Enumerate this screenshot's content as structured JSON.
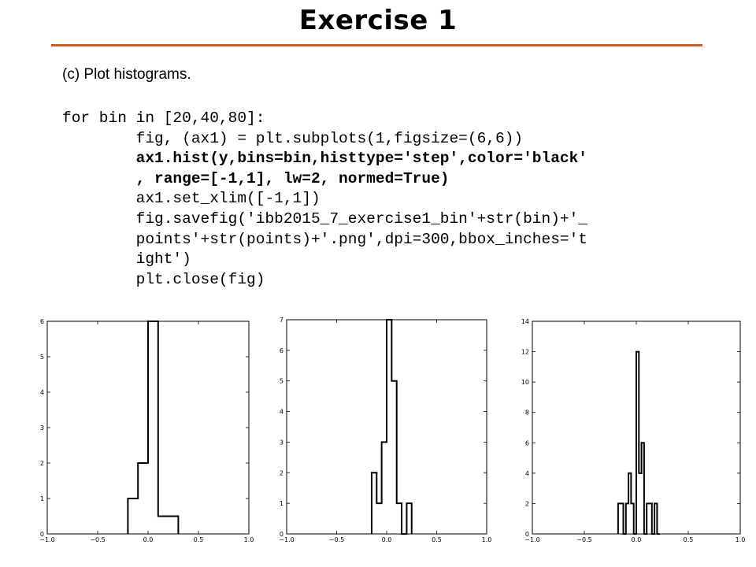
{
  "slide": {
    "title": "Exercise 1",
    "subtitle": "(c) Plot histograms.",
    "code_lines": [
      {
        "text": "for bin in [20,40,80]:",
        "indent": 0,
        "bold": false
      },
      {
        "text": "fig, (ax1) = plt.subplots(1,figsize=(6,6))",
        "indent": 1,
        "bold": false
      },
      {
        "text": "ax1.hist(y,bins=bin,histtype='step',color='black'",
        "indent": 1,
        "bold": true
      },
      {
        "text": ", range=[-1,1], lw=2, normed=True)",
        "indent": 1,
        "bold": true
      },
      {
        "text": "ax1.set_xlim([-1,1])",
        "indent": 1,
        "bold": false
      },
      {
        "text": "fig.savefig('ibb2015_7_exercise1_bin'+str(bin)+'_",
        "indent": 1,
        "bold": false
      },
      {
        "text": "points'+str(points)+'.png',dpi=300,bbox_inches='t",
        "indent": 1,
        "bold": false
      },
      {
        "text": "ight')",
        "indent": 1,
        "bold": false
      },
      {
        "text": "plt.close(fig)",
        "indent": 1,
        "bold": false
      }
    ]
  },
  "chart_data": [
    {
      "type": "histogram-step",
      "bins": 20,
      "range": [
        -1,
        1
      ],
      "xlim": [
        -1,
        1
      ],
      "ylim": [
        0,
        6
      ],
      "xticks": [
        "−1.0",
        "−0.5",
        "0.0",
        "0.5",
        "1.0"
      ],
      "yticks": [
        "0",
        "1",
        "2",
        "3",
        "4",
        "5",
        "6"
      ],
      "x": [
        -0.2,
        -0.1,
        0.0,
        0.1,
        0.2,
        0.3
      ],
      "values": [
        1,
        2,
        6,
        0.5,
        0.5
      ],
      "color": "#000000"
    },
    {
      "type": "histogram-step",
      "bins": 40,
      "range": [
        -1,
        1
      ],
      "xlim": [
        -1,
        1
      ],
      "ylim": [
        0,
        7
      ],
      "xticks": [
        "−1.0",
        "−0.5",
        "0.0",
        "0.5",
        "1.0"
      ],
      "yticks": [
        "0",
        "1",
        "2",
        "3",
        "4",
        "5",
        "6",
        "7"
      ],
      "x": [
        -0.15,
        -0.1,
        -0.05,
        0.0,
        0.05,
        0.1,
        0.15,
        0.2,
        0.25
      ],
      "values": [
        2,
        1,
        3,
        7,
        5,
        1,
        0,
        1
      ],
      "color": "#000000"
    },
    {
      "type": "histogram-step",
      "bins": 80,
      "range": [
        -1,
        1
      ],
      "xlim": [
        -1,
        1
      ],
      "ylim": [
        0,
        14
      ],
      "xticks": [
        "−1.0",
        "−0.5",
        "0.0",
        "0.5",
        "1.0"
      ],
      "yticks": [
        "0",
        "2",
        "4",
        "6",
        "8",
        "10",
        "12",
        "14"
      ],
      "x": [
        -0.175,
        -0.15,
        -0.125,
        -0.1,
        -0.075,
        -0.05,
        -0.025,
        0.0,
        0.025,
        0.05,
        0.075,
        0.1,
        0.125,
        0.15,
        0.175,
        0.2,
        0.225
      ],
      "values": [
        2,
        2,
        0,
        2,
        4,
        2,
        0,
        12,
        4,
        6,
        0,
        2,
        2,
        0,
        2,
        0
      ],
      "color": "#000000"
    }
  ]
}
